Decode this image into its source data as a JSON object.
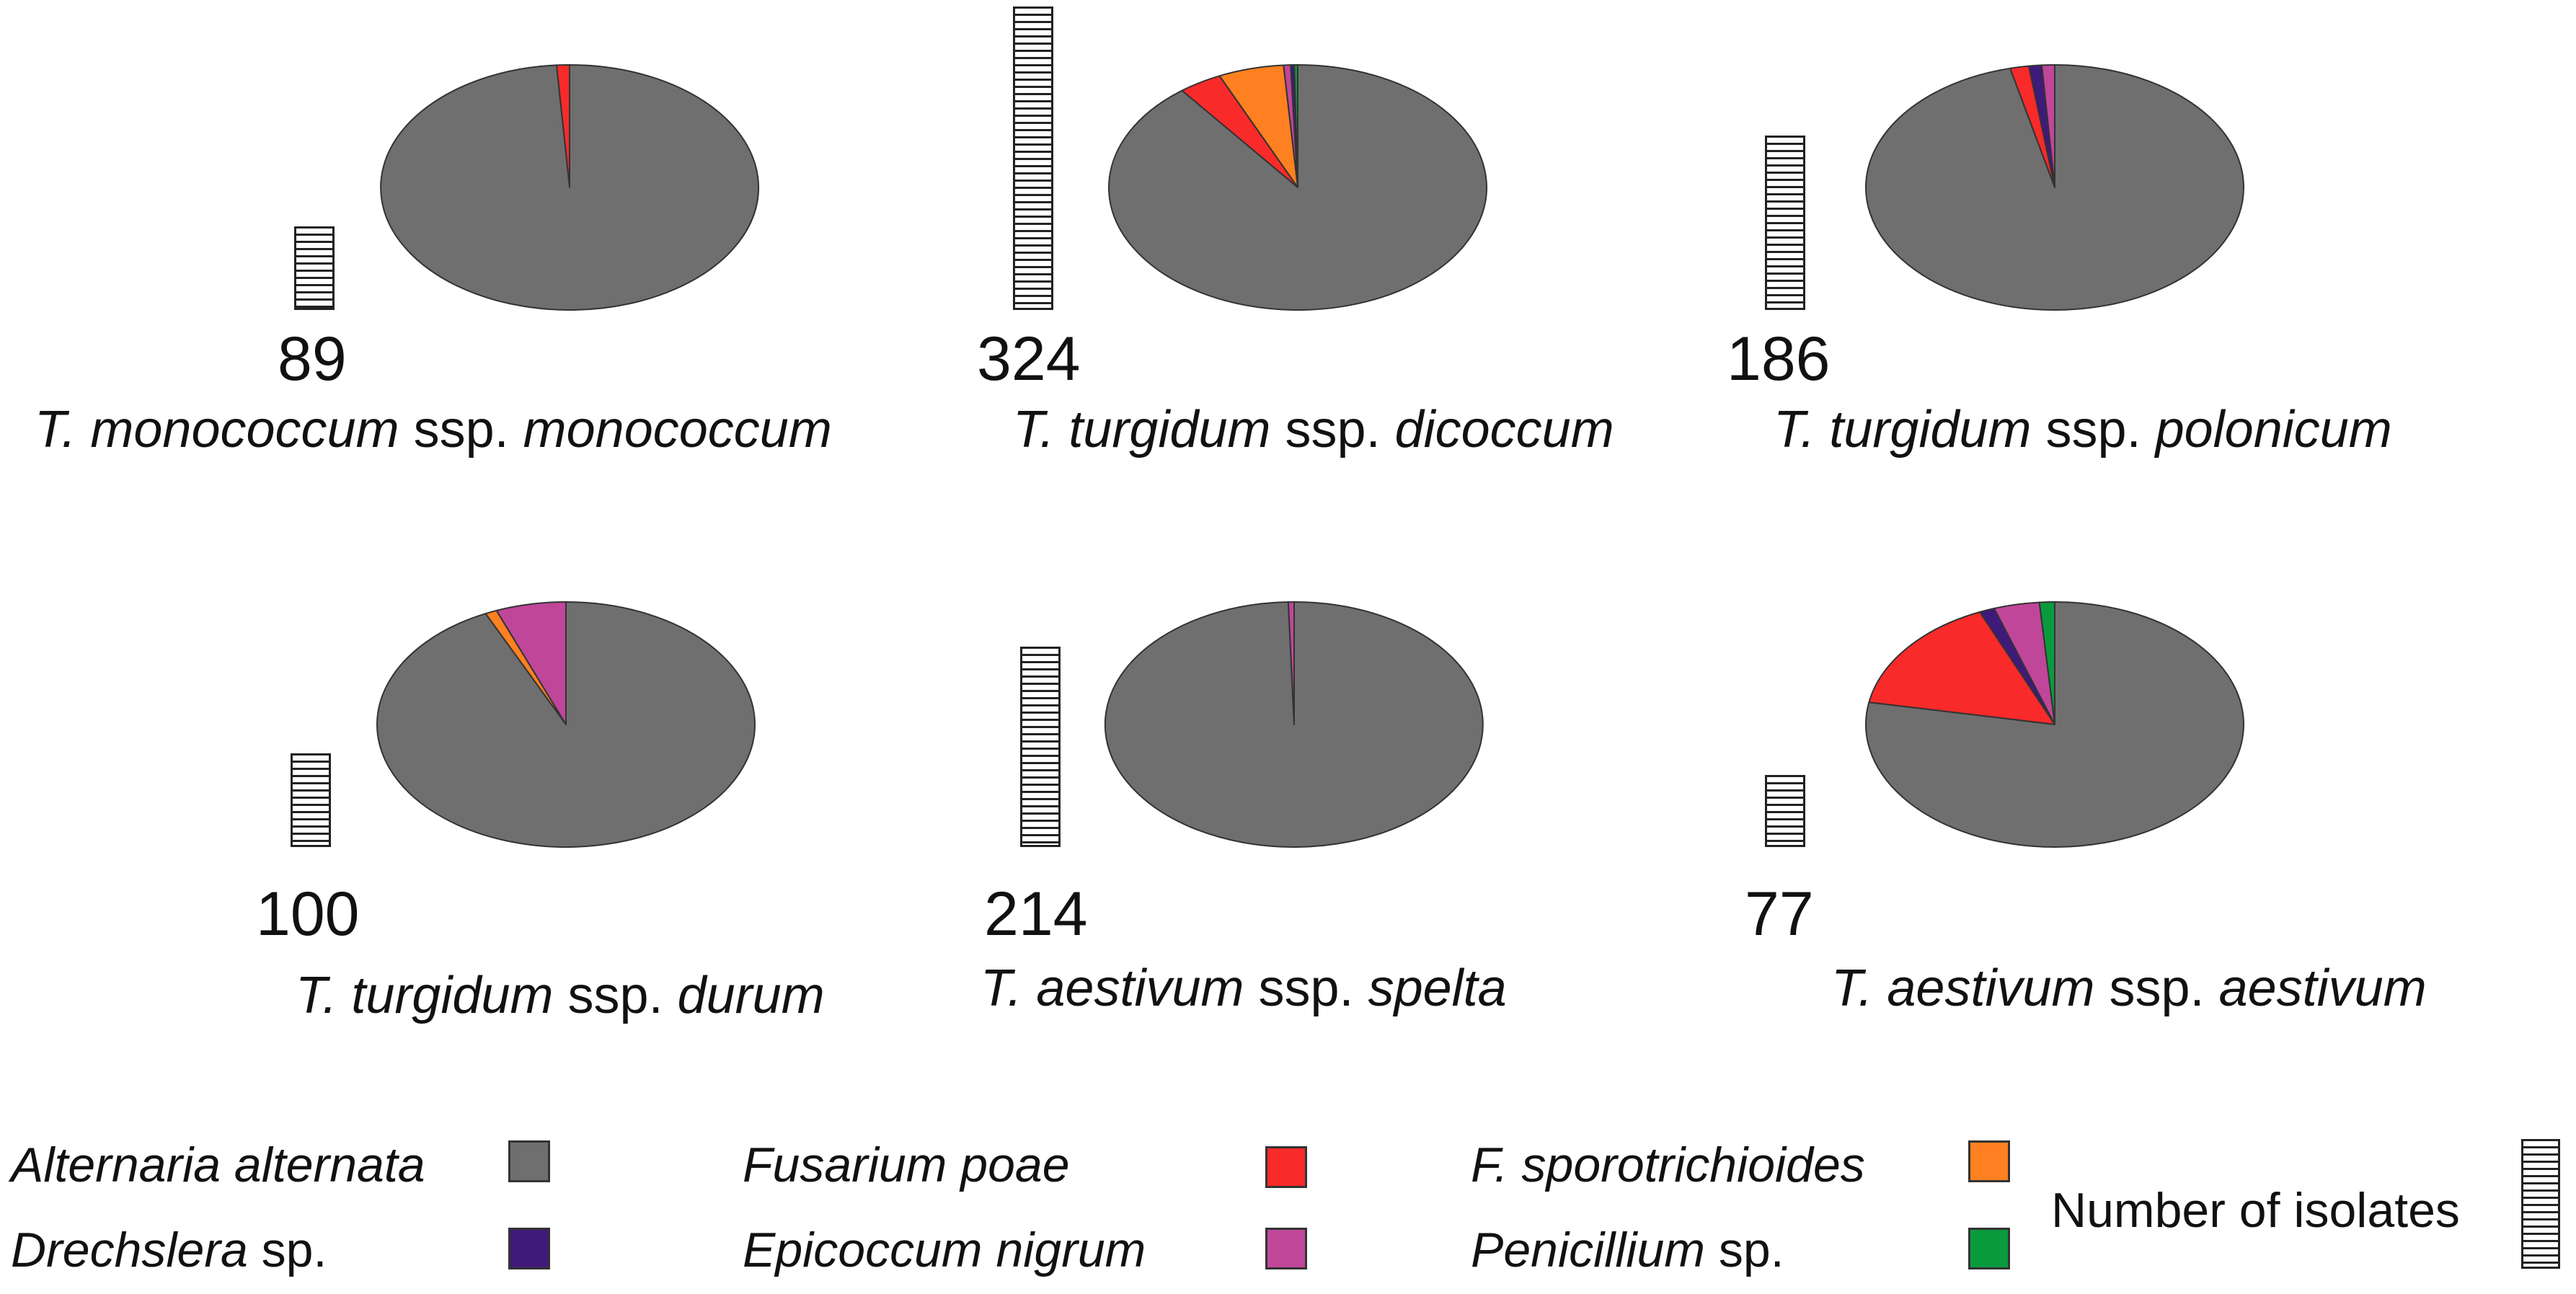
{
  "chart_data": {
    "type": "pie",
    "series_colors": {
      "Alternaria alternata": "#6f6f6f",
      "Drechslera sp.": "#3f1a7a",
      "Fusarium poae": "#f82a2a",
      "Epicoccum nigrum": "#c0469a",
      "F. sporotrichioides": "#ff8020",
      "Penicillium sp.": "#0a9a3e"
    },
    "legend": {
      "items": [
        {
          "italic": "Alternaria alternata",
          "plain": "",
          "color": "#6f6f6f"
        },
        {
          "italic": "Drechslera",
          "plain": " sp.",
          "color": "#3f1a7a"
        },
        {
          "italic": "Fusarium poae",
          "plain": "",
          "color": "#f82a2a"
        },
        {
          "italic": "Epicoccum nigrum",
          "plain": "",
          "color": "#c0469a"
        },
        {
          "italic": "F. sporotrichioides",
          "plain": "",
          "color": "#ff8020"
        },
        {
          "italic": "Penicillium",
          "plain": " sp.",
          "color": "#0a9a3e"
        }
      ],
      "count_label": "Number of isolates"
    },
    "panels": [
      {
        "count": 89,
        "species": {
          "genus": "T. monococcum",
          "ssp": "ssp.",
          "subspecies": "monococcum"
        },
        "slices": [
          {
            "name": "Fusarium poae",
            "value": 1.1
          },
          {
            "name": "Alternaria alternata",
            "value": 98.9
          }
        ]
      },
      {
        "count": 324,
        "species": {
          "genus": "T. turgidum",
          "ssp": "ssp.",
          "subspecies": "dicoccum"
        },
        "slices": [
          {
            "name": "Penicillium sp.",
            "value": 0.3
          },
          {
            "name": "Drechslera sp.",
            "value": 0.3
          },
          {
            "name": "Epicoccum nigrum",
            "value": 0.6
          },
          {
            "name": "F. sporotrichioides",
            "value": 5.6
          },
          {
            "name": "Fusarium poae",
            "value": 3.7
          },
          {
            "name": "Alternaria alternata",
            "value": 89.5
          }
        ]
      },
      {
        "count": 186,
        "species": {
          "genus": "T. turgidum",
          "ssp": "ssp.",
          "subspecies": "polonicum"
        },
        "slices": [
          {
            "name": "Epicoccum nigrum",
            "value": 1.1
          },
          {
            "name": "Drechslera sp.",
            "value": 1.1
          },
          {
            "name": "Fusarium poae",
            "value": 1.6
          },
          {
            "name": "Alternaria alternata",
            "value": 96.2
          }
        ]
      },
      {
        "count": 100,
        "species": {
          "genus": "T. turgidum",
          "ssp": "ssp.",
          "subspecies": "durum"
        },
        "slices": [
          {
            "name": "Epicoccum nigrum",
            "value": 6
          },
          {
            "name": "F. sporotrichioides",
            "value": 1
          },
          {
            "name": "Alternaria alternata",
            "value": 93
          }
        ]
      },
      {
        "count": 214,
        "species": {
          "genus": "T. aestivum",
          "ssp": "ssp.",
          "subspecies": "spelta"
        },
        "slices": [
          {
            "name": "Epicoccum nigrum",
            "value": 0.5
          },
          {
            "name": "Alternaria alternata",
            "value": 99.5
          }
        ]
      },
      {
        "count": 77,
        "species": {
          "genus": "T. aestivum",
          "ssp": "ssp.",
          "subspecies": "aestivum"
        },
        "slices": [
          {
            "name": "Penicillium sp.",
            "value": 1.3
          },
          {
            "name": "Epicoccum nigrum",
            "value": 3.9
          },
          {
            "name": "Drechslera sp.",
            "value": 1.3
          },
          {
            "name": "Fusarium poae",
            "value": 15.6
          },
          {
            "name": "Alternaria alternata",
            "value": 77.9
          }
        ]
      }
    ]
  }
}
